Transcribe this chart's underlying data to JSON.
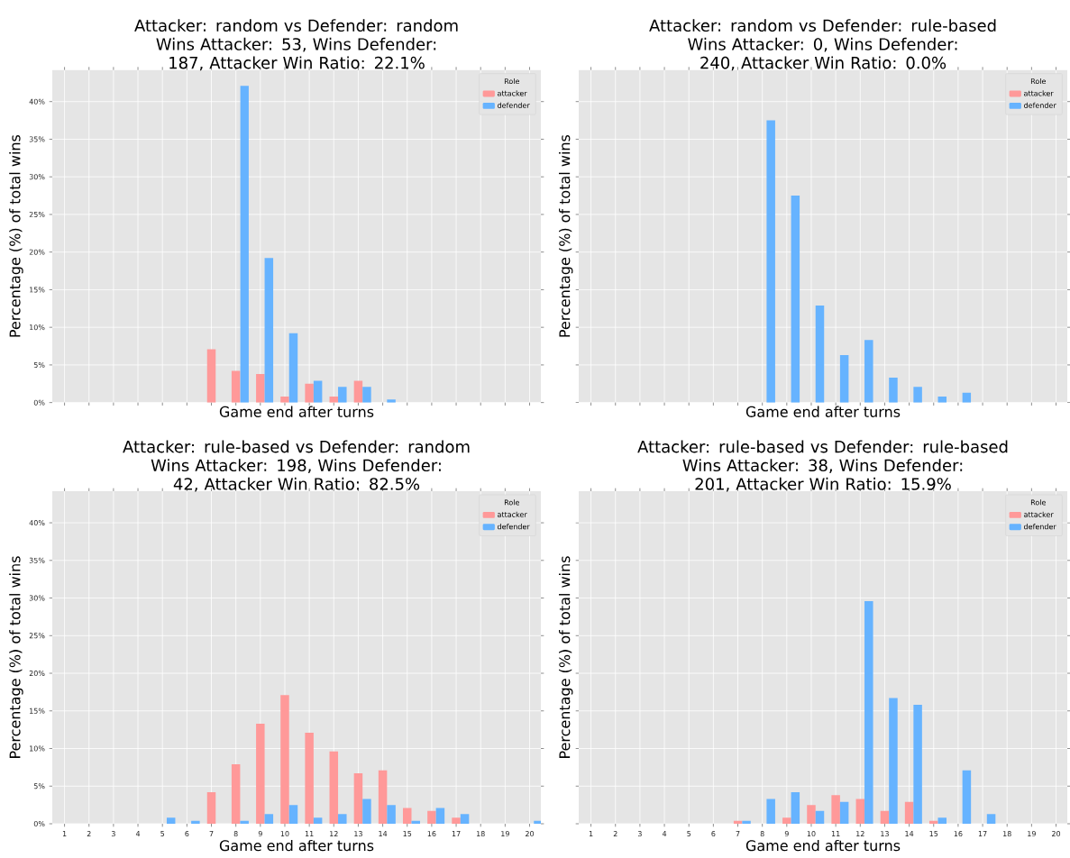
{
  "chart_data": [
    {
      "type": "bar",
      "title": "Attacker: random vs Defender: random",
      "subtitle": "Wins Attacker: 53, Wins Defender: 187, Attacker Win Ratio: 22.1%",
      "xlabel": "Game end after turns",
      "ylabel": "Percentage (%) of total wins",
      "legend_title": "Role",
      "categories": [
        "1",
        "2",
        "3",
        "4",
        "5",
        "6",
        "7",
        "8",
        "9",
        "10",
        "11",
        "12",
        "13",
        "14",
        "15",
        "16",
        "17",
        "18",
        "19",
        "20"
      ],
      "series": [
        {
          "name": "attacker",
          "color": "#ff9999",
          "values": [
            null,
            null,
            null,
            null,
            null,
            null,
            7.1,
            4.2,
            3.8,
            0.8,
            2.5,
            0.8,
            2.9,
            null,
            null,
            null,
            null,
            null,
            null,
            null
          ]
        },
        {
          "name": "defender",
          "color": "#66b3ff",
          "values": [
            null,
            null,
            null,
            null,
            null,
            null,
            null,
            42.1,
            19.2,
            9.2,
            2.9,
            2.1,
            2.1,
            0.4,
            null,
            null,
            null,
            null,
            null,
            null
          ]
        }
      ],
      "ylim": [
        0,
        44.2
      ],
      "yticks": [
        {
          "value": 0,
          "label": "0%"
        },
        {
          "value": 5,
          "label": "5%"
        },
        {
          "value": 10,
          "label": "10%"
        },
        {
          "value": 15,
          "label": "15%"
        },
        {
          "value": 20,
          "label": "20%"
        },
        {
          "value": 25,
          "label": "25%"
        },
        {
          "value": 30,
          "label": "30%"
        },
        {
          "value": 35,
          "label": "35%"
        },
        {
          "value": 40,
          "label": "40%"
        }
      ],
      "grid": true,
      "legend": "top right",
      "tick_labels": "y"
    },
    {
      "type": "bar",
      "title": "Attacker: random vs Defender: rule-based",
      "subtitle": "Wins Attacker: 0, Wins Defender: 240, Attacker Win Ratio: 0.0%",
      "xlabel": "Game end after turns",
      "ylabel": "Percentage (%) of total wins",
      "legend_title": "Role",
      "categories": [
        "1",
        "2",
        "3",
        "4",
        "5",
        "6",
        "7",
        "8",
        "9",
        "10",
        "11",
        "12",
        "13",
        "14",
        "15",
        "16",
        "17",
        "18",
        "19",
        "20"
      ],
      "series": [
        {
          "name": "attacker",
          "color": "#ff9999",
          "values": [
            null,
            null,
            null,
            null,
            null,
            null,
            null,
            null,
            null,
            null,
            null,
            null,
            null,
            null,
            null,
            null,
            null,
            null,
            null,
            null
          ]
        },
        {
          "name": "defender",
          "color": "#66b3ff",
          "values": [
            null,
            null,
            null,
            null,
            null,
            null,
            null,
            37.5,
            27.5,
            12.9,
            6.3,
            8.3,
            3.3,
            2.1,
            0.8,
            1.3,
            null,
            null,
            null,
            null
          ]
        }
      ],
      "ylim": [
        0,
        44.2
      ],
      "yticks": [
        {
          "value": 0,
          "label": null
        },
        {
          "value": 5,
          "label": null
        },
        {
          "value": 10,
          "label": null
        },
        {
          "value": 15,
          "label": null
        },
        {
          "value": 20,
          "label": null
        },
        {
          "value": 25,
          "label": null
        },
        {
          "value": 30,
          "label": null
        },
        {
          "value": 35,
          "label": null
        },
        {
          "value": 40,
          "label": null
        }
      ],
      "grid": true,
      "legend": "top right",
      "tick_labels": false
    },
    {
      "type": "bar",
      "title": "Attacker: rule-based vs Defender: random",
      "subtitle": "Wins Attacker: 198, Wins Defender: 42, Attacker Win Ratio: 82.5%",
      "xlabel": "Game end after turns",
      "ylabel": "Percentage (%) of total wins",
      "legend_title": "Role",
      "categories": [
        "1",
        "2",
        "3",
        "4",
        "5",
        "6",
        "7",
        "8",
        "9",
        "10",
        "11",
        "12",
        "13",
        "14",
        "15",
        "16",
        "17",
        "18",
        "19",
        "20"
      ],
      "series": [
        {
          "name": "attacker",
          "color": "#ff9999",
          "values": [
            null,
            null,
            null,
            null,
            null,
            null,
            4.2,
            7.9,
            13.3,
            17.1,
            12.1,
            9.6,
            6.7,
            7.1,
            2.1,
            1.7,
            0.8,
            null,
            null,
            null
          ]
        },
        {
          "name": "defender",
          "color": "#66b3ff",
          "values": [
            null,
            null,
            null,
            null,
            0.8,
            0.4,
            null,
            0.4,
            1.3,
            2.5,
            0.8,
            1.3,
            3.3,
            2.5,
            0.4,
            2.1,
            1.3,
            null,
            null,
            0.4
          ]
        }
      ],
      "ylim": [
        0,
        44.2
      ],
      "yticks": [
        {
          "value": 0,
          "label": "0%"
        },
        {
          "value": 5,
          "label": "5%"
        },
        {
          "value": 10,
          "label": "10%"
        },
        {
          "value": 15,
          "label": "15%"
        },
        {
          "value": 20,
          "label": "20%"
        },
        {
          "value": 25,
          "label": "25%"
        },
        {
          "value": 30,
          "label": "30%"
        },
        {
          "value": 35,
          "label": "35%"
        },
        {
          "value": 40,
          "label": "40%"
        }
      ],
      "grid": true,
      "legend": "top right"
    },
    {
      "type": "bar",
      "title": "Attacker: rule-based vs Defender: rule-based",
      "subtitle": "Wins Attacker: 38, Wins Defender: 201, Attacker Win Ratio: 15.9%",
      "xlabel": "Game end after turns",
      "ylabel": "Percentage (%) of total wins",
      "legend_title": "Role",
      "categories": [
        "1",
        "2",
        "3",
        "4",
        "5",
        "6",
        "7",
        "8",
        "9",
        "10",
        "11",
        "12",
        "13",
        "14",
        "15",
        "16",
        "17",
        "18",
        "19",
        "20"
      ],
      "series": [
        {
          "name": "attacker",
          "color": "#ff9999",
          "values": [
            null,
            null,
            null,
            null,
            null,
            null,
            0.4,
            null,
            0.8,
            2.5,
            3.8,
            3.3,
            1.7,
            2.9,
            0.4,
            null,
            null,
            null,
            null,
            null
          ]
        },
        {
          "name": "defender",
          "color": "#66b3ff",
          "values": [
            null,
            null,
            null,
            null,
            null,
            null,
            0.4,
            3.3,
            4.2,
            1.7,
            2.9,
            29.6,
            16.7,
            15.8,
            0.8,
            7.1,
            1.3,
            null,
            null,
            null
          ]
        }
      ],
      "ylim": [
        0,
        44.2
      ],
      "yticks": [
        {
          "value": 0,
          "label": null
        },
        {
          "value": 5,
          "label": null
        },
        {
          "value": 10,
          "label": null
        },
        {
          "value": 15,
          "label": null
        },
        {
          "value": 20,
          "label": null
        },
        {
          "value": 25,
          "label": null
        },
        {
          "value": 30,
          "label": null
        },
        {
          "value": 35,
          "label": null
        },
        {
          "value": 40,
          "label": null
        }
      ],
      "grid": true,
      "legend": "top right",
      "tick_labels": "x"
    }
  ]
}
